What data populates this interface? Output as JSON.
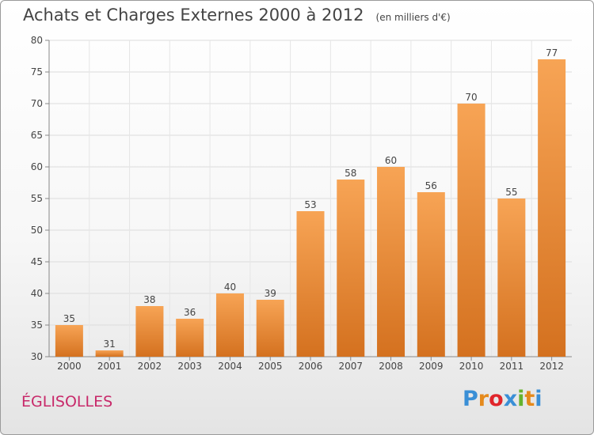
{
  "header": {
    "title": "Achats et Charges Externes 2000 à 2012",
    "subtitle": "(en milliers d'€)"
  },
  "footer": {
    "location": "ÉGLISOLLES",
    "logo_letters": [
      "P",
      "r",
      "o",
      "x",
      "i",
      "t",
      "i"
    ],
    "logo_colors": [
      "#3a8fd6",
      "#e58a1c",
      "#e0252b",
      "#3a8fd6",
      "#65b32e",
      "#e58a1c",
      "#3a8fd6"
    ]
  },
  "chart_data": {
    "type": "bar",
    "title": "Achats et Charges Externes 2000 à 2012",
    "subtitle": "(en milliers d'€)",
    "categories": [
      "2000",
      "2001",
      "2002",
      "2003",
      "2004",
      "2005",
      "2006",
      "2007",
      "2008",
      "2009",
      "2010",
      "2011",
      "2012"
    ],
    "values": [
      35,
      31,
      38,
      36,
      40,
      39,
      53,
      58,
      60,
      56,
      70,
      55,
      77
    ],
    "ylim": [
      30,
      80
    ],
    "yticks": [
      30,
      35,
      40,
      45,
      50,
      55,
      60,
      65,
      70,
      75,
      80
    ],
    "grid": true,
    "bar_color_top": "#f7a455",
    "bar_color_bottom": "#d4711f"
  }
}
